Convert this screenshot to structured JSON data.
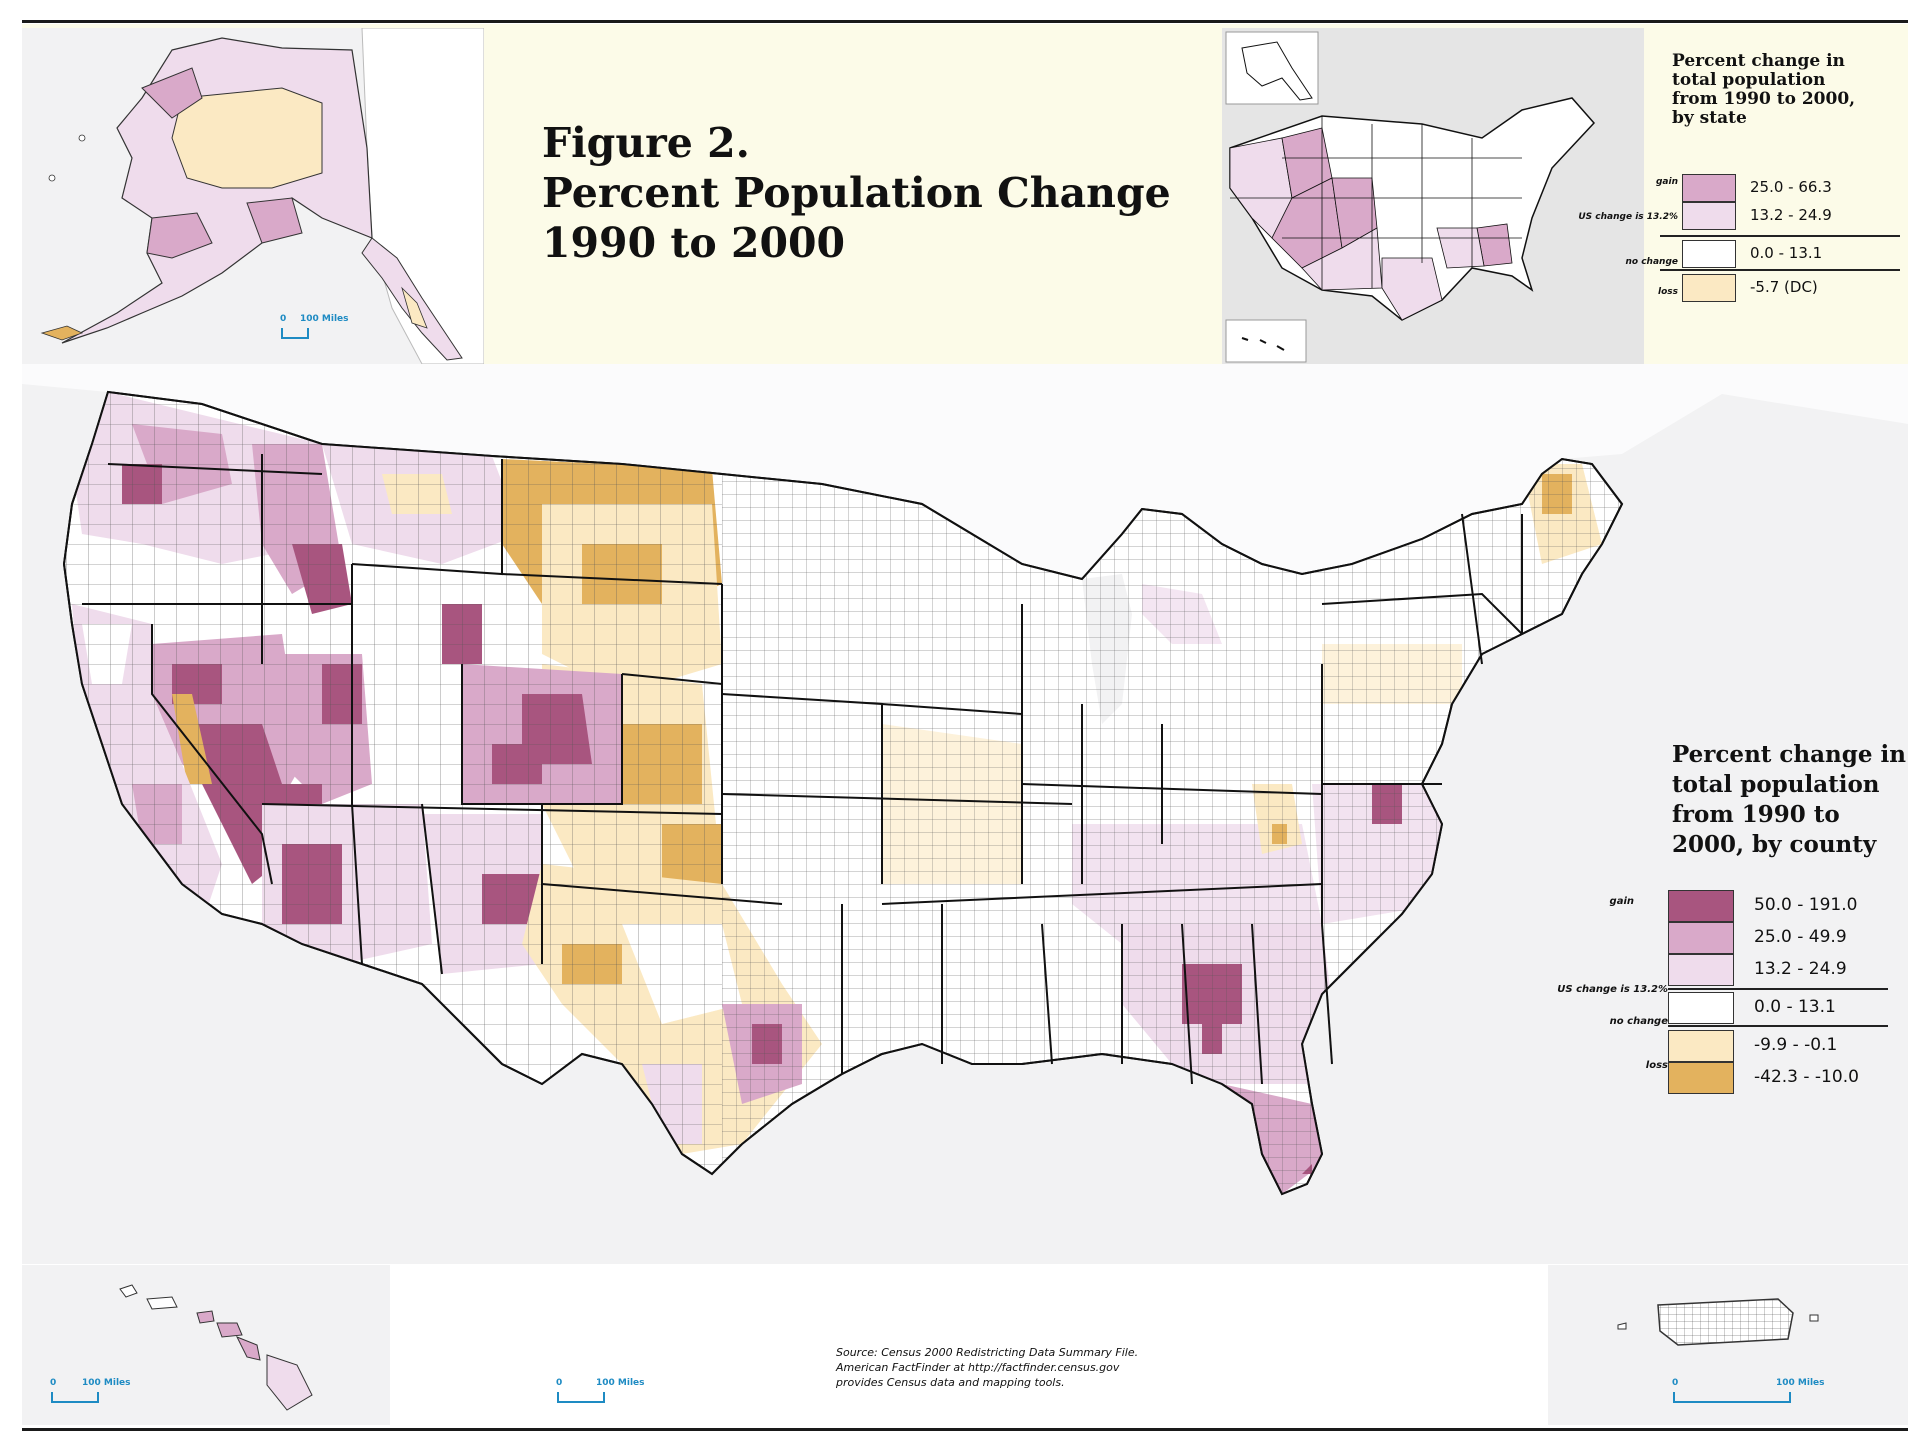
{
  "figure": {
    "line1": "Figure 2.",
    "line2": "Percent Population Change",
    "line3": "1990 to 2000"
  },
  "colors": {
    "gain_high": "#a8557f",
    "gain_mid": "#d9a9c9",
    "gain_low": "#efdcec",
    "no_gain": "#ffffff",
    "loss_small": "#fbe9c3",
    "loss_large": "#e3b25e",
    "state_border": "#111111",
    "county_border": "#444444",
    "water": "#f2f2f3",
    "header_bg": "#fcfbe8",
    "scale": "#1e8bc3"
  },
  "state_legend": {
    "title_lines": [
      "Percent change in",
      "total population",
      "from 1990 to 2000,",
      "by state"
    ],
    "side_gain": "gain",
    "side_us": "US change is 13.2%",
    "side_nochange": "no change",
    "side_loss": "loss",
    "items": [
      {
        "label": "25.0 - 66.3",
        "color": "#d9a9c9"
      },
      {
        "label": "13.2 - 24.9",
        "color": "#efdcec"
      },
      {
        "label": "0.0 - 13.1",
        "color": "#ffffff"
      },
      {
        "label": "-5.7 (DC)",
        "color": "#fbe9c3"
      }
    ]
  },
  "county_legend": {
    "title_lines": [
      "Percent change in",
      "total population",
      "from 1990 to",
      "2000, by county"
    ],
    "side_gain": "gain",
    "side_us": "US change is 13.2%",
    "side_nochange": "no change",
    "side_loss": "loss",
    "items": [
      {
        "label": "50.0 - 191.0",
        "color": "#a8557f"
      },
      {
        "label": "25.0 - 49.9",
        "color": "#d9a9c9"
      },
      {
        "label": "13.2 - 24.9",
        "color": "#efdcec"
      },
      {
        "label": "0.0 - 13.1",
        "color": "#ffffff"
      },
      {
        "label": "-9.9 - -0.1",
        "color": "#fbe9c3"
      },
      {
        "label": "-42.3 - -10.0",
        "color": "#e3b25e"
      }
    ]
  },
  "scale_bars": {
    "alaska": {
      "zero": "0",
      "dist": "100 Miles"
    },
    "hawaii": {
      "zero": "0",
      "dist": "100 Miles"
    },
    "conus": {
      "zero": "0",
      "dist": "100 Miles"
    },
    "puerto_rico": {
      "zero": "0",
      "dist": "100 Miles"
    }
  },
  "source": {
    "line1": "Source: Census 2000 Redistricting Data Summary File.",
    "line2": "American FactFinder at http://factfinder.census.gov",
    "line3": "provides Census data and mapping tools."
  }
}
